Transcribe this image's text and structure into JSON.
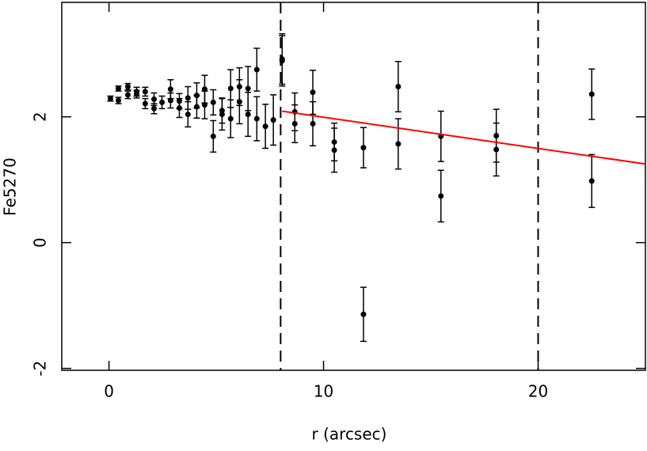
{
  "chart_data": {
    "type": "scatter",
    "xlabel": "r (arcsec)",
    "ylabel": "Fe5270",
    "xlim": [
      -2.2,
      25
    ],
    "ylim": [
      -2.03,
      3.82
    ],
    "xticks": [
      0,
      10,
      20
    ],
    "yticks": [
      -2,
      0,
      2
    ],
    "series": [
      {
        "color": "#000000",
        "x": [
          0.07,
          0.44,
          0.44,
          0.88,
          0.88,
          1.29,
          1.29,
          1.69,
          1.69,
          2.1,
          2.1,
          2.47,
          2.87,
          2.87,
          3.28,
          3.28,
          3.68,
          3.68,
          4.09,
          4.09,
          4.46,
          4.46,
          4.86,
          4.86,
          5.27,
          5.27,
          5.67,
          5.67,
          6.08,
          6.08,
          6.48,
          6.48,
          6.89,
          6.89,
          7.29,
          7.66,
          8.07,
          8.07,
          8.66,
          8.66,
          9.5,
          9.5,
          10.5,
          10.5,
          11.86,
          11.86,
          13.48,
          13.48,
          15.47,
          15.47,
          18.05,
          18.05,
          22.5,
          22.5
        ],
        "values": [
          2.29,
          2.26,
          2.45,
          2.48,
          2.35,
          2.4,
          2.36,
          2.4,
          2.21,
          2.13,
          2.28,
          2.23,
          2.44,
          2.26,
          2.25,
          2.14,
          2.3,
          2.04,
          2.16,
          2.34,
          2.44,
          2.19,
          2.23,
          1.69,
          2.1,
          2.04,
          2.45,
          1.97,
          2.48,
          2.24,
          2.45,
          2.04,
          2.75,
          1.97,
          1.85,
          1.95,
          2.89,
          2.92,
          2.08,
          1.89,
          2.39,
          1.89,
          1.6,
          1.47,
          1.51,
          -1.14,
          2.48,
          1.57,
          1.69,
          0.74,
          1.7,
          1.48,
          2.36,
          0.98
        ],
        "errors": [
          0.04,
          0.05,
          0.04,
          0.05,
          0.06,
          0.07,
          0.06,
          0.07,
          0.08,
          0.08,
          0.1,
          0.1,
          0.15,
          0.12,
          0.12,
          0.15,
          0.18,
          0.2,
          0.18,
          0.2,
          0.22,
          0.22,
          0.2,
          0.25,
          0.2,
          0.25,
          0.3,
          0.3,
          0.3,
          0.35,
          0.35,
          0.35,
          0.34,
          0.35,
          0.35,
          0.4,
          0.4,
          0.4,
          0.3,
          0.3,
          0.35,
          0.35,
          0.3,
          0.35,
          0.32,
          0.43,
          0.4,
          0.4,
          0.4,
          0.41,
          0.42,
          0.42,
          0.4,
          0.42
        ]
      }
    ],
    "fit": {
      "color": "#ff0000",
      "x": [
        8.07,
        25
      ],
      "values": [
        2.09,
        1.25
      ]
    },
    "vlines": [
      8,
      20
    ]
  }
}
